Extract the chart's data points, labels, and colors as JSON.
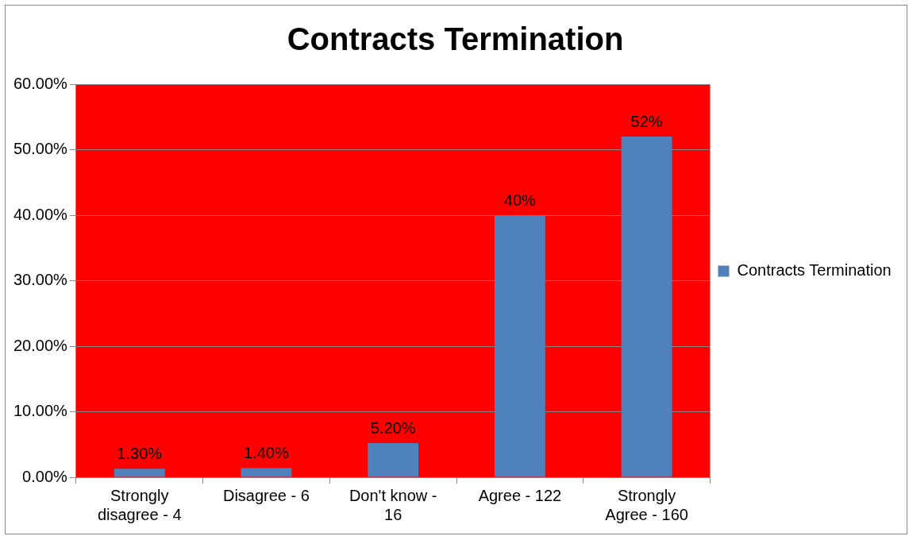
{
  "chart_data": {
    "type": "bar",
    "title": "Contracts Termination",
    "categories": [
      "Strongly disagree - 4",
      "Disagree - 6",
      "Don't know - 16",
      "Agree - 122",
      "Strongly Agree - 160"
    ],
    "series": [
      {
        "name": "Contracts Termination",
        "color": "#4f81bd",
        "values": [
          1.3,
          1.4,
          5.2,
          40,
          52
        ],
        "value_labels": [
          "1.30%",
          "1.40%",
          "5.20%",
          "40%",
          "52%"
        ]
      }
    ],
    "ylim": [
      0,
      60
    ],
    "yticks": [
      {
        "value": 0,
        "label": "0.00%"
      },
      {
        "value": 10,
        "label": "10.00%"
      },
      {
        "value": 20,
        "label": "20.00%"
      },
      {
        "value": 30,
        "label": "30.00%"
      },
      {
        "value": 40,
        "label": "40.00%"
      },
      {
        "value": 50,
        "label": "50.00%"
      },
      {
        "value": 60,
        "label": "60.00%"
      }
    ],
    "grid": "y",
    "legend": "right"
  }
}
